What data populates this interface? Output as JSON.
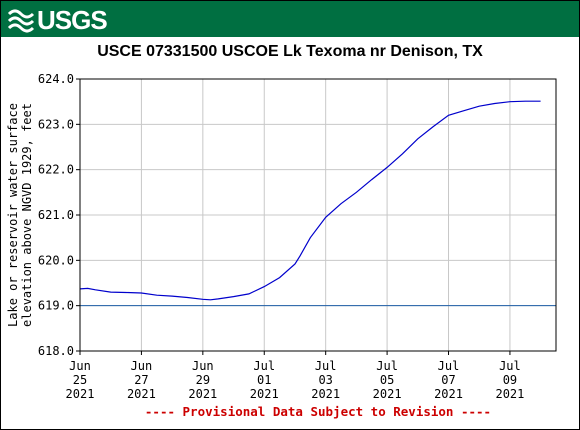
{
  "banner": {
    "logo_text": "USGS",
    "logo_icon": "usgs-wave-icon",
    "color": "#006f41"
  },
  "chart_data": {
    "type": "line",
    "title": "USCE 07331500 USCOE Lk Texoma nr Denison, TX",
    "ylabel_lines": [
      "Lake or reservoir water surface",
      "elevation above NGVD 1929, feet"
    ],
    "xlabel": "",
    "ylim": [
      618.0,
      624.0
    ],
    "y_ticks": [
      618.0,
      619.0,
      620.0,
      621.0,
      622.0,
      623.0,
      624.0
    ],
    "y_tick_labels": [
      "618.0",
      "619.0",
      "620.0",
      "621.0",
      "622.0",
      "623.0",
      "624.0"
    ],
    "xlim": [
      "2021-06-25",
      "2021-07-10T12:00"
    ],
    "x_ticks": [
      {
        "date": "2021-06-25",
        "lines": [
          "Jun",
          "25",
          "2021"
        ]
      },
      {
        "date": "2021-06-27",
        "lines": [
          "Jun",
          "27",
          "2021"
        ]
      },
      {
        "date": "2021-06-29",
        "lines": [
          "Jun",
          "29",
          "2021"
        ]
      },
      {
        "date": "2021-07-01",
        "lines": [
          "Jul",
          "01",
          "2021"
        ]
      },
      {
        "date": "2021-07-03",
        "lines": [
          "Jul",
          "03",
          "2021"
        ]
      },
      {
        "date": "2021-07-05",
        "lines": [
          "Jul",
          "05",
          "2021"
        ]
      },
      {
        "date": "2021-07-07",
        "lines": [
          "Jul",
          "07",
          "2021"
        ]
      },
      {
        "date": "2021-07-09",
        "lines": [
          "Jul",
          "09",
          "2021"
        ]
      }
    ],
    "grid": true,
    "series": [
      {
        "color": "#0000cc",
        "points": [
          [
            "2021-06-25T00:00",
            619.37
          ],
          [
            "2021-06-25T06:00",
            619.38
          ],
          [
            "2021-06-25T12:00",
            619.35
          ],
          [
            "2021-06-26T00:00",
            619.3
          ],
          [
            "2021-06-26T12:00",
            619.29
          ],
          [
            "2021-06-27T00:00",
            619.28
          ],
          [
            "2021-06-27T12:00",
            619.23
          ],
          [
            "2021-06-28T00:00",
            619.21
          ],
          [
            "2021-06-28T12:00",
            619.18
          ],
          [
            "2021-06-29T00:00",
            619.14
          ],
          [
            "2021-06-29T06:00",
            619.13
          ],
          [
            "2021-06-29T12:00",
            619.15
          ],
          [
            "2021-06-30T00:00",
            619.2
          ],
          [
            "2021-06-30T12:00",
            619.26
          ],
          [
            "2021-07-01T00:00",
            619.42
          ],
          [
            "2021-07-01T12:00",
            619.62
          ],
          [
            "2021-07-02T00:00",
            619.92
          ],
          [
            "2021-07-02T04:00",
            620.1
          ],
          [
            "2021-07-02T12:00",
            620.5
          ],
          [
            "2021-07-03T00:00",
            620.95
          ],
          [
            "2021-07-03T12:00",
            621.25
          ],
          [
            "2021-07-04T00:00",
            621.5
          ],
          [
            "2021-07-04T12:00",
            621.78
          ],
          [
            "2021-07-05T00:00",
            622.05
          ],
          [
            "2021-07-05T12:00",
            622.35
          ],
          [
            "2021-07-06T00:00",
            622.68
          ],
          [
            "2021-07-06T12:00",
            622.95
          ],
          [
            "2021-07-07T00:00",
            623.2
          ],
          [
            "2021-07-07T12:00",
            623.3
          ],
          [
            "2021-07-08T00:00",
            623.4
          ],
          [
            "2021-07-08T12:00",
            623.46
          ],
          [
            "2021-07-09T00:00",
            623.5
          ],
          [
            "2021-07-09T12:00",
            623.51
          ],
          [
            "2021-07-10T00:00",
            623.51
          ]
        ]
      }
    ],
    "reference_lines": [
      {
        "y": 619.0,
        "color": "#1f5fa8"
      }
    ],
    "footer_note": "---- Provisional Data Subject to Revision ----",
    "footer_color": "#cc0000"
  }
}
